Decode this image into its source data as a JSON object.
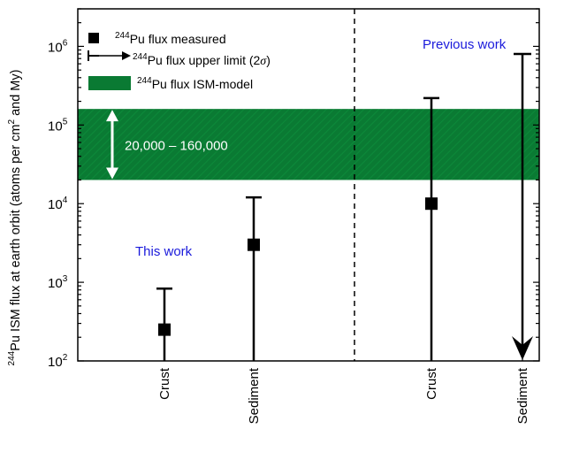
{
  "chart_data": {
    "type": "scatter",
    "ylabel_main": "Pu ISM flux at earth orbit (atoms per cm",
    "ylabel_sup": "244",
    "ylabel_sup2": "2",
    "ylabel_tail": " and My)",
    "yscale": "log",
    "ylim": [
      100,
      3000000
    ],
    "yticks": [
      {
        "value": 100,
        "base": "10",
        "exp": "2"
      },
      {
        "value": 1000,
        "base": "10",
        "exp": "3"
      },
      {
        "value": 10000,
        "base": "10",
        "exp": "4"
      },
      {
        "value": 100000,
        "base": "10",
        "exp": "5"
      },
      {
        "value": 1000000,
        "base": "10",
        "exp": "6"
      }
    ],
    "categories": [
      "Crust",
      "Sediment",
      "Crust",
      "Sediment"
    ],
    "points": [
      {
        "category": "Crust",
        "value": 250,
        "err_low": 100,
        "err_high": 830,
        "upper_limit": false,
        "group": "This work"
      },
      {
        "category": "Sediment",
        "value": 3000,
        "err_low": 100,
        "err_high": 12000,
        "upper_limit": false,
        "group": "This work"
      },
      {
        "category": "Crust",
        "value": 10000,
        "err_low": 100,
        "err_high": 220000,
        "upper_limit": false,
        "group": "Previous work"
      },
      {
        "category": "Sediment",
        "value": null,
        "err_low": 100,
        "err_high": 800000,
        "upper_limit": true,
        "group": "Previous work"
      }
    ],
    "band": {
      "low": 20000,
      "high": 160000,
      "label": "20,000 – 160,000",
      "color": "#0a7a33"
    },
    "groups": [
      {
        "label": "This work",
        "color": "#1a1adb"
      },
      {
        "label": "Previous work",
        "color": "#1a1adb"
      }
    ],
    "legend": [
      {
        "marker": "square",
        "sup": "244",
        "text": "Pu flux measured"
      },
      {
        "marker": "arrow",
        "sup": "244",
        "text": "Pu flux upper limit (2",
        "sigma": "σ",
        "tail": ")"
      },
      {
        "marker": "band",
        "sup": "244",
        "text": "Pu flux ISM-model"
      }
    ]
  }
}
